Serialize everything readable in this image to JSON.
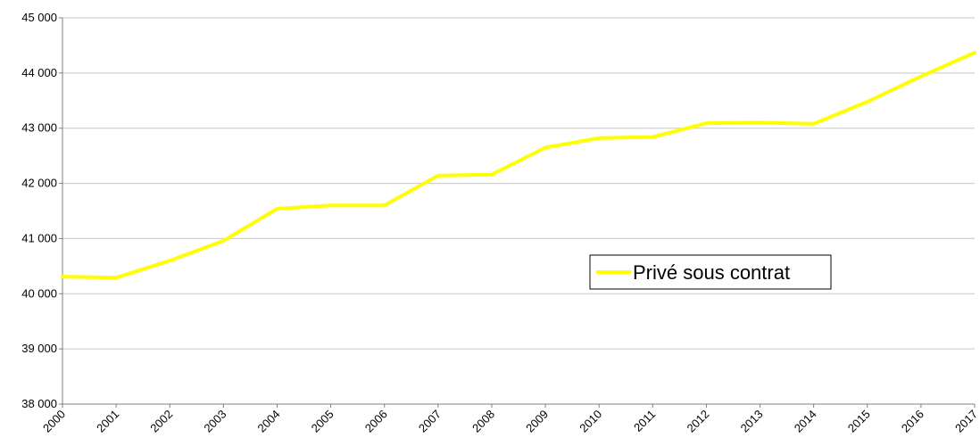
{
  "chart_data": {
    "type": "line",
    "title": "",
    "xlabel": "",
    "ylabel": "",
    "categories": [
      "2000",
      "2001",
      "2002",
      "2003",
      "2004",
      "2005",
      "2006",
      "2007",
      "2008",
      "2009",
      "2010",
      "2011",
      "2012",
      "2013",
      "2014",
      "2015",
      "2016",
      "2017"
    ],
    "series": [
      {
        "name": "Privé sous contrat",
        "color": "#ffff00",
        "values": [
          40310,
          40290,
          40600,
          40960,
          41540,
          41600,
          41600,
          42140,
          42160,
          42650,
          42820,
          42840,
          43090,
          43100,
          43080,
          43480,
          43940,
          44370
        ]
      }
    ],
    "ylim": [
      38000,
      45000
    ],
    "yticks": [
      38000,
      39000,
      40000,
      41000,
      42000,
      43000,
      44000,
      45000
    ],
    "ytick_labels": [
      "38 000",
      "39 000",
      "40 000",
      "41 000",
      "42 000",
      "43 000",
      "44 000",
      "45 000"
    ],
    "grid": true,
    "grid_color": "#c8c8c8",
    "legend_position": "center-right"
  }
}
